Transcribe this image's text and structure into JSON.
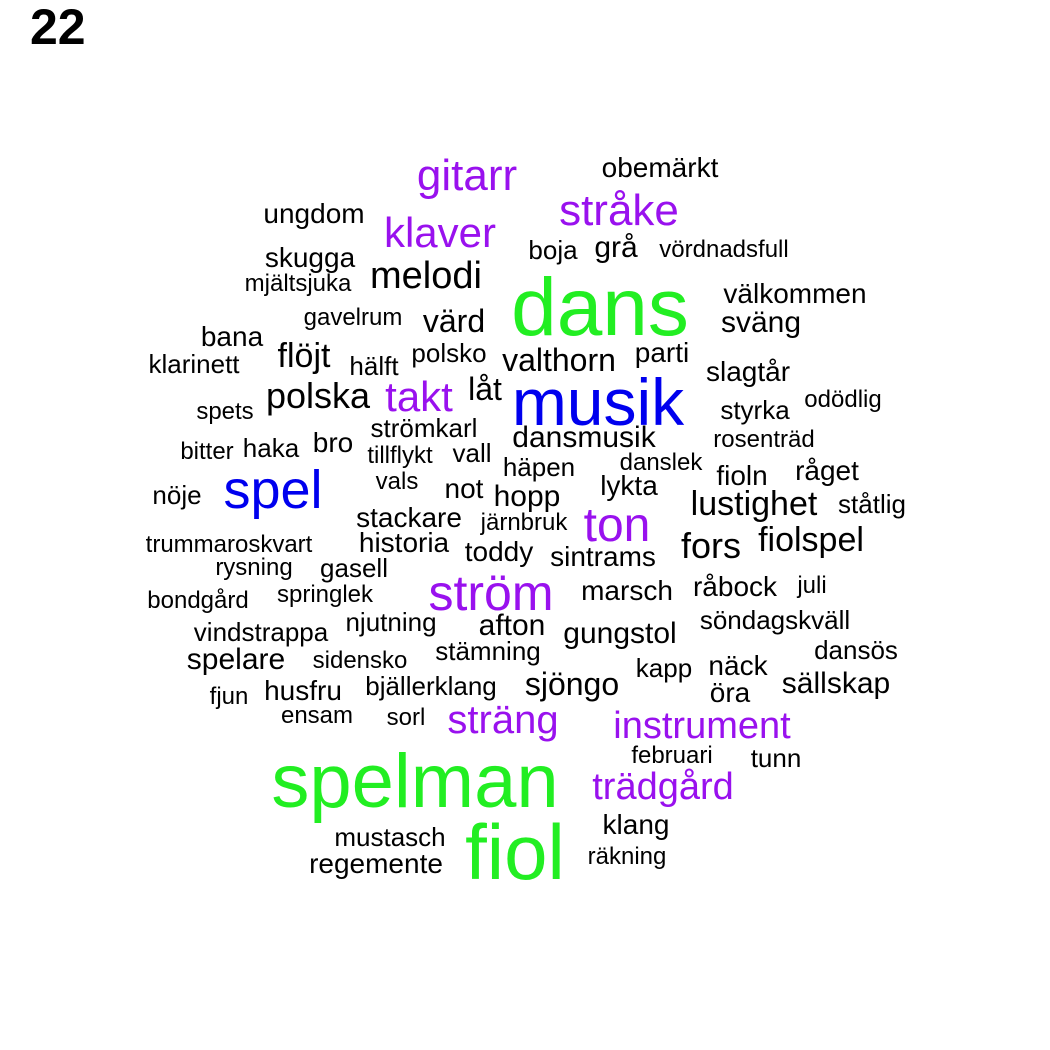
{
  "page_number": "22",
  "colors": {
    "tier1": "#22ee22",
    "tier2": "#0000ee",
    "tier3": "#9911ee",
    "tier4": "#000000"
  },
  "words": [
    {
      "text": "spelman",
      "tier": 1
    },
    {
      "text": "dans",
      "tier": 1
    },
    {
      "text": "fiol",
      "tier": 1
    },
    {
      "text": "musik",
      "tier": 2
    },
    {
      "text": "spel",
      "tier": 2
    },
    {
      "text": "gitarr",
      "tier": 3
    },
    {
      "text": "stråke",
      "tier": 3
    },
    {
      "text": "klaver",
      "tier": 3
    },
    {
      "text": "takt",
      "tier": 3
    },
    {
      "text": "ton",
      "tier": 3
    },
    {
      "text": "ström",
      "tier": 3
    },
    {
      "text": "sträng",
      "tier": 3
    },
    {
      "text": "instrument",
      "tier": 3
    },
    {
      "text": "trädgård",
      "tier": 3
    },
    {
      "text": "obemärkt",
      "tier": 4
    },
    {
      "text": "ungdom",
      "tier": 4
    },
    {
      "text": "boja",
      "tier": 4
    },
    {
      "text": "grå",
      "tier": 4
    },
    {
      "text": "vördnadsfull",
      "tier": 4
    },
    {
      "text": "skugga",
      "tier": 4
    },
    {
      "text": "mjältsjuka",
      "tier": 4
    },
    {
      "text": "melodi",
      "tier": 4
    },
    {
      "text": "välkommen",
      "tier": 4
    },
    {
      "text": "gavelrum",
      "tier": 4
    },
    {
      "text": "värd",
      "tier": 4
    },
    {
      "text": "sväng",
      "tier": 4
    },
    {
      "text": "bana",
      "tier": 4
    },
    {
      "text": "klarinett",
      "tier": 4
    },
    {
      "text": "flöjt",
      "tier": 4
    },
    {
      "text": "hälft",
      "tier": 4
    },
    {
      "text": "polsko",
      "tier": 4
    },
    {
      "text": "valthorn",
      "tier": 4
    },
    {
      "text": "parti",
      "tier": 4
    },
    {
      "text": "slagtår",
      "tier": 4
    },
    {
      "text": "polska",
      "tier": 4
    },
    {
      "text": "låt",
      "tier": 4
    },
    {
      "text": "spets",
      "tier": 4
    },
    {
      "text": "styrka",
      "tier": 4
    },
    {
      "text": "odödlig",
      "tier": 4
    },
    {
      "text": "strömkarl",
      "tier": 4
    },
    {
      "text": "dansmusik",
      "tier": 4
    },
    {
      "text": "rosenträd",
      "tier": 4
    },
    {
      "text": "bitter",
      "tier": 4
    },
    {
      "text": "haka",
      "tier": 4
    },
    {
      "text": "bro",
      "tier": 4
    },
    {
      "text": "tillflykt",
      "tier": 4
    },
    {
      "text": "vall",
      "tier": 4
    },
    {
      "text": "häpen",
      "tier": 4
    },
    {
      "text": "danslek",
      "tier": 4
    },
    {
      "text": "fioln",
      "tier": 4
    },
    {
      "text": "råget",
      "tier": 4
    },
    {
      "text": "nöje",
      "tier": 4
    },
    {
      "text": "vals",
      "tier": 4
    },
    {
      "text": "not",
      "tier": 4
    },
    {
      "text": "hopp",
      "tier": 4
    },
    {
      "text": "lykta",
      "tier": 4
    },
    {
      "text": "lustighet",
      "tier": 4
    },
    {
      "text": "ståtlig",
      "tier": 4
    },
    {
      "text": "stackare",
      "tier": 4
    },
    {
      "text": "järnbruk",
      "tier": 4
    },
    {
      "text": "trummaroskvart",
      "tier": 4
    },
    {
      "text": "historia",
      "tier": 4
    },
    {
      "text": "toddy",
      "tier": 4
    },
    {
      "text": "sintrams",
      "tier": 4
    },
    {
      "text": "fors",
      "tier": 4
    },
    {
      "text": "fiolspel",
      "tier": 4
    },
    {
      "text": "rysning",
      "tier": 4
    },
    {
      "text": "gasell",
      "tier": 4
    },
    {
      "text": "marsch",
      "tier": 4
    },
    {
      "text": "råbock",
      "tier": 4
    },
    {
      "text": "juli",
      "tier": 4
    },
    {
      "text": "bondgård",
      "tier": 4
    },
    {
      "text": "springlek",
      "tier": 4
    },
    {
      "text": "söndagskväll",
      "tier": 4
    },
    {
      "text": "vindstrappa",
      "tier": 4
    },
    {
      "text": "njutning",
      "tier": 4
    },
    {
      "text": "afton",
      "tier": 4
    },
    {
      "text": "gungstol",
      "tier": 4
    },
    {
      "text": "spelare",
      "tier": 4
    },
    {
      "text": "sidensko",
      "tier": 4
    },
    {
      "text": "stämning",
      "tier": 4
    },
    {
      "text": "dansös",
      "tier": 4
    },
    {
      "text": "kapp",
      "tier": 4
    },
    {
      "text": "näck",
      "tier": 4
    },
    {
      "text": "fjun",
      "tier": 4
    },
    {
      "text": "husfru",
      "tier": 4
    },
    {
      "text": "bjällerklang",
      "tier": 4
    },
    {
      "text": "sjöngo",
      "tier": 4
    },
    {
      "text": "öra",
      "tier": 4
    },
    {
      "text": "sällskap",
      "tier": 4
    },
    {
      "text": "ensam",
      "tier": 4
    },
    {
      "text": "sorl",
      "tier": 4
    },
    {
      "text": "februari",
      "tier": 4
    },
    {
      "text": "tunn",
      "tier": 4
    },
    {
      "text": "klang",
      "tier": 4
    },
    {
      "text": "mustasch",
      "tier": 4
    },
    {
      "text": "regemente",
      "tier": 4
    },
    {
      "text": "räkning",
      "tier": 4
    }
  ]
}
